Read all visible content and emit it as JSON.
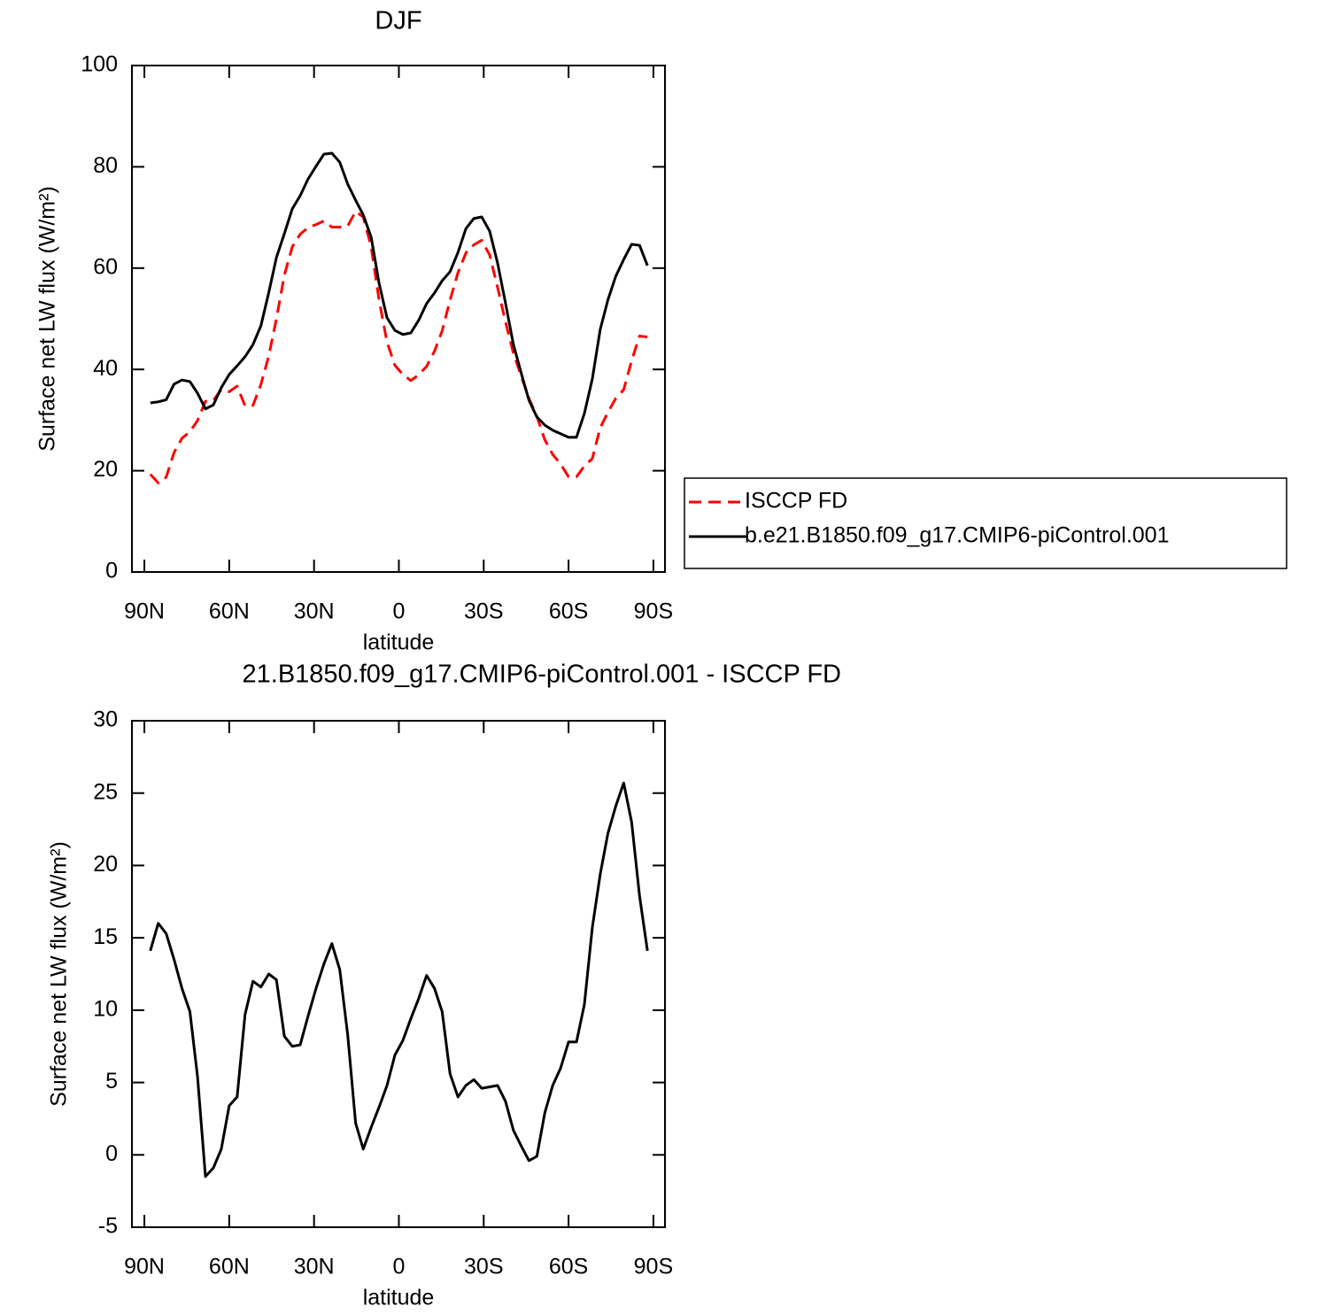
{
  "chart_data": [
    {
      "type": "line",
      "title": "DJF",
      "xlabel": "latitude",
      "ylabel": "Surface net LW flux (W/m²)",
      "x": [
        87.9,
        85.1,
        82.3,
        79.5,
        76.7,
        73.9,
        71.2,
        68.4,
        65.6,
        62.8,
        60.0,
        57.2,
        54.4,
        51.6,
        48.8,
        46.0,
        43.3,
        40.5,
        37.7,
        34.9,
        32.1,
        29.3,
        26.5,
        23.7,
        20.9,
        18.1,
        15.3,
        12.6,
        9.8,
        7.0,
        4.2,
        1.4,
        -1.4,
        -4.2,
        -7.0,
        -9.8,
        -12.6,
        -15.3,
        -18.1,
        -20.9,
        -23.7,
        -26.5,
        -29.3,
        -32.1,
        -34.9,
        -37.7,
        -40.5,
        -43.3,
        -46.0,
        -48.8,
        -51.6,
        -54.4,
        -57.2,
        -60.0,
        -62.8,
        -65.6,
        -68.4,
        -71.2,
        -73.9,
        -76.7,
        -79.5,
        -82.3,
        -85.1,
        -87.9
      ],
      "series": [
        {
          "name": "ISCCP FD",
          "color": "#ff0000",
          "dash": true,
          "values": [
            19.3,
            17.6,
            18.7,
            23.6,
            26.4,
            27.7,
            29.9,
            33.7,
            33.9,
            36.0,
            35.6,
            36.7,
            32.8,
            32.9,
            37.0,
            42.7,
            50.0,
            58.6,
            64.2,
            66.7,
            68.0,
            68.6,
            69.3,
            68.1,
            68.1,
            68.3,
            71.2,
            70.1,
            64.2,
            53.7,
            45.4,
            40.8,
            39.0,
            37.8,
            38.9,
            40.6,
            43.6,
            47.6,
            53.7,
            59.1,
            63.0,
            64.6,
            65.5,
            62.6,
            56.2,
            49.4,
            43.2,
            38.6,
            34.3,
            30.7,
            26.1,
            23.2,
            21.3,
            18.8,
            18.8,
            20.9,
            22.4,
            28.5,
            31.5,
            34.3,
            36.0,
            41.7,
            46.6,
            46.4
          ]
        },
        {
          "name": "b.e21.B1850.f09_g17.CMIP6-piControl.001",
          "color": "#000000",
          "dash": false,
          "values": [
            33.4,
            33.6,
            34.0,
            37.1,
            37.9,
            37.6,
            35.3,
            32.2,
            33.0,
            36.4,
            39.0,
            40.7,
            42.5,
            44.9,
            48.6,
            55.2,
            62.1,
            66.8,
            71.7,
            74.3,
            77.6,
            80.1,
            82.5,
            82.7,
            80.9,
            76.6,
            73.4,
            70.5,
            66.1,
            57.0,
            50.2,
            47.7,
            46.9,
            47.2,
            49.7,
            53.0,
            55.1,
            57.5,
            59.3,
            63.1,
            67.8,
            69.8,
            70.1,
            67.3,
            61.0,
            53.1,
            44.9,
            39.2,
            33.9,
            30.6,
            29.0,
            28.0,
            27.3,
            26.6,
            26.6,
            31.3,
            38.1,
            47.9,
            53.7,
            58.4,
            61.7,
            64.7,
            64.5,
            60.5
          ]
        }
      ],
      "xlim": [
        94.4,
        -94.1
      ],
      "xticks": [
        {
          "value": 90,
          "label": "90N"
        },
        {
          "value": 60,
          "label": "60N"
        },
        {
          "value": 30,
          "label": "30N"
        },
        0,
        {
          "value": -30,
          "label": "30S"
        },
        {
          "value": -60,
          "label": "60S"
        },
        {
          "value": -90,
          "label": "90S"
        }
      ],
      "ylim": [
        0,
        100
      ],
      "yticks": [
        0,
        20,
        40,
        60,
        80,
        100
      ],
      "legend": "right"
    },
    {
      "type": "line",
      "title": "21.B1850.f09_g17.CMIP6-piControl.001 - ISCCP FD",
      "xlabel": "latitude",
      "ylabel": "Surface net LW flux (W/m²)",
      "x": [
        87.9,
        85.1,
        82.3,
        79.5,
        76.7,
        73.9,
        71.2,
        68.4,
        65.6,
        62.8,
        60.0,
        57.2,
        54.4,
        51.6,
        48.8,
        46.0,
        43.3,
        40.5,
        37.7,
        34.9,
        32.1,
        29.3,
        26.5,
        23.7,
        20.9,
        18.1,
        15.3,
        12.6,
        9.8,
        7.0,
        4.2,
        1.4,
        -1.4,
        -4.2,
        -7.0,
        -9.8,
        -12.6,
        -15.3,
        -18.1,
        -20.9,
        -23.7,
        -26.5,
        -29.3,
        -32.1,
        -34.9,
        -37.7,
        -40.5,
        -43.3,
        -46.0,
        -48.8,
        -51.6,
        -54.4,
        -57.2,
        -60.0,
        -62.8,
        -65.6,
        -68.4,
        -71.2,
        -73.9,
        -76.7,
        -79.5,
        -82.3,
        -85.1,
        -87.9
      ],
      "values": [
        14.1,
        16.0,
        15.3,
        13.5,
        11.5,
        9.9,
        5.4,
        -1.5,
        -0.9,
        0.4,
        3.4,
        4.0,
        9.7,
        12.0,
        11.6,
        12.5,
        12.1,
        8.2,
        7.5,
        7.6,
        9.6,
        11.5,
        13.2,
        14.6,
        12.8,
        8.3,
        2.2,
        0.4,
        1.9,
        3.3,
        4.8,
        6.9,
        7.9,
        9.4,
        10.8,
        12.4,
        11.5,
        9.9,
        5.6,
        4.0,
        4.8,
        5.2,
        4.6,
        4.7,
        4.8,
        3.7,
        1.7,
        0.6,
        -0.4,
        -0.1,
        2.9,
        4.8,
        6.0,
        7.8,
        7.8,
        10.4,
        15.7,
        19.4,
        22.2,
        24.1,
        25.7,
        23.0,
        17.9,
        14.1
      ],
      "color": "#000000",
      "xlim": [
        94.4,
        -94.1
      ],
      "xticks": [
        {
          "value": 90,
          "label": "90N"
        },
        {
          "value": 60,
          "label": "60N"
        },
        {
          "value": 30,
          "label": "30N"
        },
        0,
        {
          "value": -30,
          "label": "30S"
        },
        {
          "value": -60,
          "label": "60S"
        },
        {
          "value": -90,
          "label": "90S"
        }
      ],
      "ylim": [
        -5,
        30
      ],
      "yticks": [
        -5,
        0,
        5,
        10,
        15,
        20,
        25,
        30
      ]
    }
  ]
}
